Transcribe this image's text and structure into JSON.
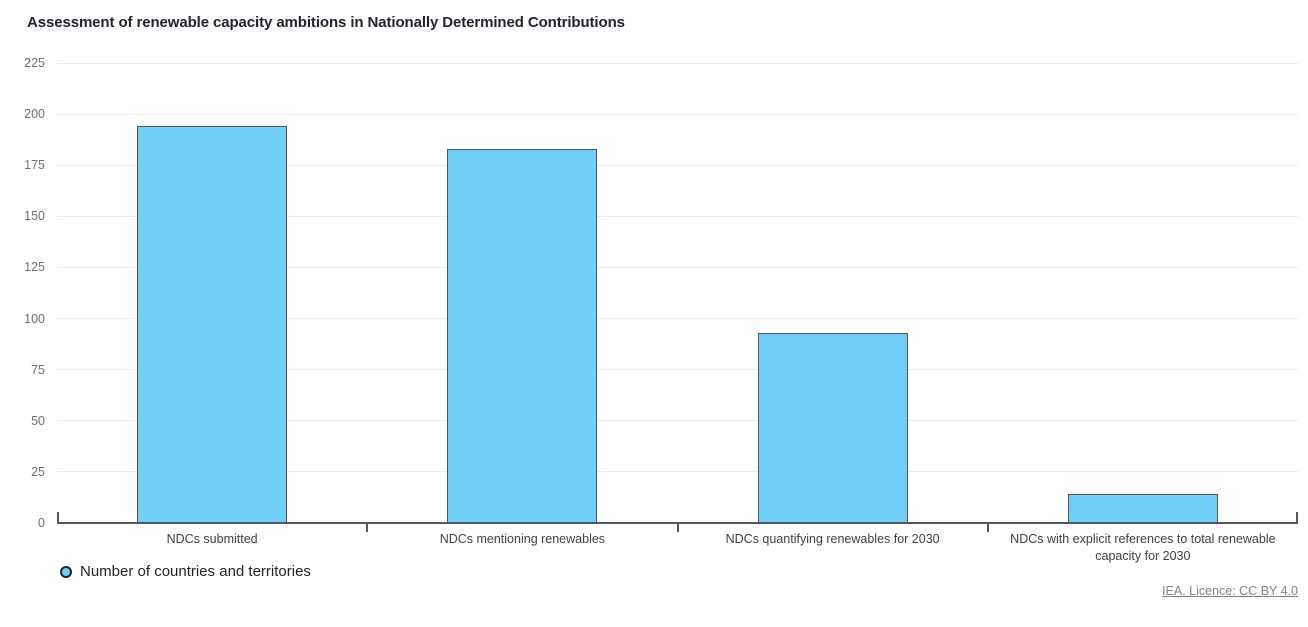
{
  "chart_data": {
    "type": "bar",
    "title": "Assessment of renewable capacity ambitions in Nationally Determined Contributions",
    "categories": [
      "NDCs submitted",
      "NDCs mentioning renewables",
      "NDCs quantifying renewables for 2030",
      "NDCs with explicit references to total renewable capacity for 2030"
    ],
    "series": [
      {
        "name": "Number of countries and territories",
        "values": [
          194,
          183,
          93,
          14
        ]
      }
    ],
    "xlabel": "",
    "ylabel": "",
    "ylim": [
      0,
      225
    ],
    "ytick_interval": 25,
    "ytick_labels": [
      "0",
      "25",
      "50",
      "75",
      "100",
      "125",
      "150",
      "175",
      "200",
      "225"
    ],
    "grid": true,
    "legend_position": "bottom-left",
    "marker": "circle-icon",
    "colors": {
      "bar_fill": "#73CFF7",
      "bar_border": "#54555C",
      "axis": "#56575E",
      "gridline": "#ECECEE",
      "y_tick_text": "#71717B",
      "x_tick_text": "#3F3F47",
      "title_text": "#23232E",
      "legend_ring": "#20242E",
      "link_text": "#85858D"
    }
  },
  "footer": {
    "licence_label": "IEA. Licence: CC BY 4.0"
  }
}
